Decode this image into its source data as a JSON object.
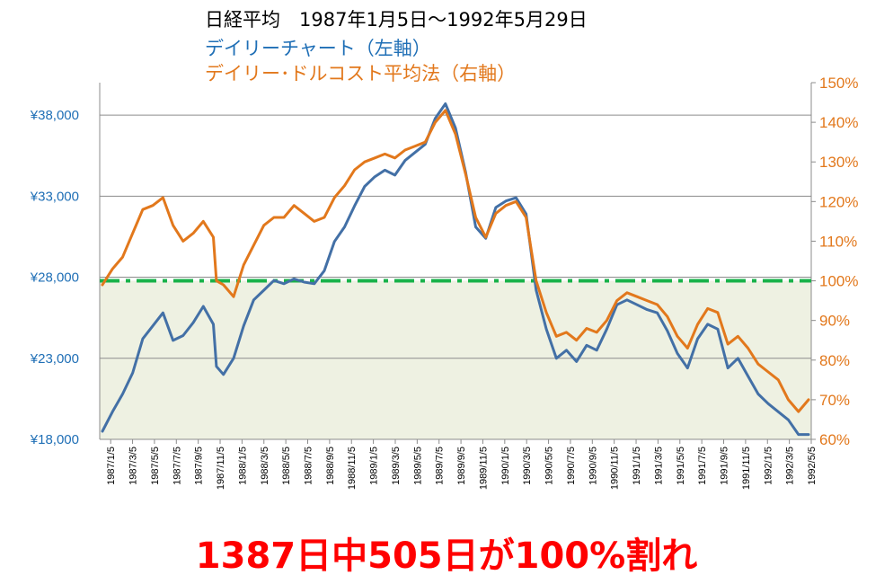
{
  "titles": {
    "main": "日経平均　1987年1月5日～1992年5月29日",
    "series_left": "デイリーチャート（左軸）",
    "series_right": "デイリー･ドルコスト平均法（右軸）"
  },
  "caption": "1387日中505日が100%割れ",
  "colors": {
    "nikkei_line": "#4370a6",
    "dca_line": "#e2781c",
    "left_axis_text": "#1f6fb6",
    "right_axis_text": "#e2781c",
    "reference_line": "#19b24a",
    "shaded_area": "#eef1e2",
    "caption": "#ff0000"
  },
  "chart_data": {
    "type": "line",
    "x_labels": [
      "1987/1/5",
      "1987/3/5",
      "1987/5/5",
      "1987/7/5",
      "1987/9/5",
      "1987/11/5",
      "1988/1/5",
      "1988/3/5",
      "1988/5/5",
      "1988/7/5",
      "1988/9/5",
      "1988/11/5",
      "1989/1/5",
      "1989/3/5",
      "1989/5/5",
      "1989/7/5",
      "1989/9/5",
      "1989/11/5",
      "1990/1/5",
      "1990/3/5",
      "1990/5/5",
      "1990/7/5",
      "1990/9/5",
      "1990/11/5",
      "1991/1/5",
      "1991/3/5",
      "1991/5/5",
      "1991/7/5",
      "1991/9/5",
      "1991/11/5",
      "1992/1/5",
      "1992/3/5",
      "1992/5/5"
    ],
    "y_left": {
      "min": 18000,
      "max": 40000,
      "ticks": [
        18000,
        23000,
        28000,
        33000,
        38000
      ],
      "tick_labels": [
        "¥18,000",
        "¥23,000",
        "¥28,000",
        "¥33,000",
        "¥38,000"
      ]
    },
    "y_right": {
      "min": 60,
      "max": 150,
      "ticks": [
        60,
        70,
        80,
        90,
        100,
        110,
        120,
        130,
        140,
        150
      ],
      "tick_labels": [
        "60%",
        "70%",
        "80%",
        "90%",
        "100%",
        "110%",
        "120%",
        "130%",
        "140%",
        "150%"
      ]
    },
    "reference_line": {
      "axis": "right",
      "value": 100
    },
    "grid": true,
    "series": [
      {
        "axis": "left",
        "points": [
          [
            0,
            18500
          ],
          [
            1,
            19700
          ],
          [
            2,
            20800
          ],
          [
            3,
            22100
          ],
          [
            4,
            24200
          ],
          [
            5,
            25000
          ],
          [
            6,
            25800
          ],
          [
            7,
            24100
          ],
          [
            8,
            24400
          ],
          [
            9,
            25200
          ],
          [
            10,
            26200
          ],
          [
            11,
            25100
          ],
          [
            11.3,
            22500
          ],
          [
            12,
            22000
          ],
          [
            13,
            23000
          ],
          [
            14,
            25000
          ],
          [
            15,
            26600
          ],
          [
            16,
            27200
          ],
          [
            17,
            27800
          ],
          [
            18,
            27600
          ],
          [
            19,
            27900
          ],
          [
            20,
            27700
          ],
          [
            21,
            27600
          ],
          [
            22,
            28400
          ],
          [
            23,
            30200
          ],
          [
            24,
            31100
          ],
          [
            25,
            32400
          ],
          [
            26,
            33600
          ],
          [
            27,
            34200
          ],
          [
            28,
            34600
          ],
          [
            29,
            34300
          ],
          [
            30,
            35200
          ],
          [
            31,
            35700
          ],
          [
            32,
            36200
          ],
          [
            33,
            37800
          ],
          [
            34,
            38700
          ],
          [
            35,
            37200
          ],
          [
            36,
            34500
          ],
          [
            37,
            31100
          ],
          [
            38,
            30400
          ],
          [
            39,
            32300
          ],
          [
            40,
            32700
          ],
          [
            41,
            32900
          ],
          [
            42,
            31900
          ],
          [
            43,
            27200
          ],
          [
            44,
            24800
          ],
          [
            45,
            23000
          ],
          [
            46,
            23500
          ],
          [
            47,
            22800
          ],
          [
            48,
            23800
          ],
          [
            49,
            23500
          ],
          [
            50,
            24800
          ],
          [
            51,
            26300
          ],
          [
            52,
            26600
          ],
          [
            53,
            26300
          ],
          [
            54,
            26000
          ],
          [
            55,
            25800
          ],
          [
            56,
            24700
          ],
          [
            57,
            23300
          ],
          [
            58,
            22400
          ],
          [
            59,
            24200
          ],
          [
            60,
            25100
          ],
          [
            61,
            24800
          ],
          [
            62,
            22400
          ],
          [
            63,
            23000
          ],
          [
            64,
            21900
          ],
          [
            65,
            20800
          ],
          [
            66,
            20200
          ],
          [
            67,
            19700
          ],
          [
            68,
            19200
          ],
          [
            69,
            18300
          ],
          [
            70,
            18300
          ]
        ]
      },
      {
        "axis": "right",
        "points": [
          [
            0,
            99
          ],
          [
            1,
            103
          ],
          [
            2,
            106
          ],
          [
            3,
            112
          ],
          [
            4,
            118
          ],
          [
            5,
            119
          ],
          [
            6,
            121
          ],
          [
            7,
            114
          ],
          [
            8,
            110
          ],
          [
            9,
            112
          ],
          [
            10,
            115
          ],
          [
            11,
            111
          ],
          [
            11.3,
            100
          ],
          [
            12,
            99
          ],
          [
            13,
            96
          ],
          [
            14,
            104
          ],
          [
            15,
            109
          ],
          [
            16,
            114
          ],
          [
            17,
            116
          ],
          [
            18,
            116
          ],
          [
            19,
            119
          ],
          [
            20,
            117
          ],
          [
            21,
            115
          ],
          [
            22,
            116
          ],
          [
            23,
            121
          ],
          [
            24,
            124
          ],
          [
            25,
            128
          ],
          [
            26,
            130
          ],
          [
            27,
            131
          ],
          [
            28,
            132
          ],
          [
            29,
            131
          ],
          [
            30,
            133
          ],
          [
            31,
            134
          ],
          [
            32,
            135
          ],
          [
            33,
            140
          ],
          [
            34,
            143
          ],
          [
            35,
            137
          ],
          [
            36,
            127
          ],
          [
            37,
            116
          ],
          [
            38,
            111
          ],
          [
            39,
            117
          ],
          [
            40,
            119
          ],
          [
            41,
            120
          ],
          [
            42,
            116
          ],
          [
            43,
            100
          ],
          [
            44,
            92
          ],
          [
            45,
            86
          ],
          [
            46,
            87
          ],
          [
            47,
            85
          ],
          [
            48,
            88
          ],
          [
            49,
            87
          ],
          [
            50,
            90
          ],
          [
            51,
            95
          ],
          [
            52,
            97
          ],
          [
            53,
            96
          ],
          [
            54,
            95
          ],
          [
            55,
            94
          ],
          [
            56,
            91
          ],
          [
            57,
            86
          ],
          [
            58,
            83
          ],
          [
            59,
            89
          ],
          [
            60,
            93
          ],
          [
            61,
            92
          ],
          [
            62,
            84
          ],
          [
            63,
            86
          ],
          [
            64,
            83
          ],
          [
            65,
            79
          ],
          [
            66,
            77
          ],
          [
            67,
            75
          ],
          [
            68,
            70
          ],
          [
            69,
            67
          ],
          [
            70,
            70
          ]
        ]
      }
    ]
  }
}
